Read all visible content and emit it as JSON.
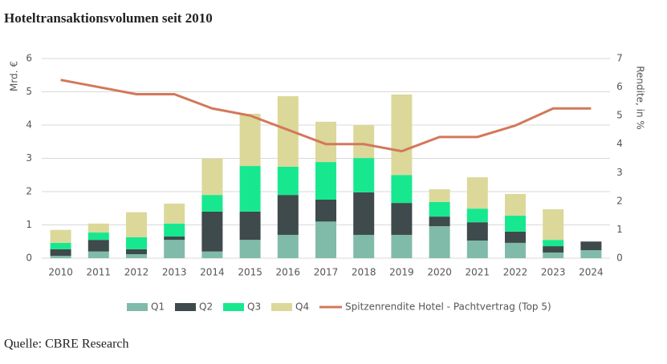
{
  "chart_data": {
    "type": "stacked-bar-line",
    "title": "Hoteltransaktionsvolumen seit 2010",
    "source": "Quelle: CBRE Research",
    "ylabel": "Mrd. €",
    "y2label": "Rendite, in %",
    "categories": [
      "2010",
      "2011",
      "2012",
      "2013",
      "2014",
      "2015",
      "2016",
      "2017",
      "2018",
      "2019",
      "2020",
      "2021",
      "2022",
      "2023",
      "2024"
    ],
    "ylim": [
      0,
      6
    ],
    "yticks": [
      0,
      1,
      2,
      3,
      4,
      5,
      6
    ],
    "y2lim": [
      0,
      7
    ],
    "y2ticks": [
      0,
      1,
      2,
      3,
      4,
      5,
      6,
      7
    ],
    "grid": true,
    "legend": "bottom",
    "series": [
      {
        "name": "Q1",
        "color": "#80bba9",
        "values": [
          0.07,
          0.2,
          0.12,
          0.55,
          0.2,
          0.55,
          0.7,
          1.1,
          0.7,
          0.7,
          0.96,
          0.53,
          0.46,
          0.17,
          0.24
        ]
      },
      {
        "name": "Q2",
        "color": "#3e4a4b",
        "values": [
          0.2,
          0.35,
          0.15,
          0.1,
          1.2,
          0.85,
          1.2,
          0.66,
          1.28,
          0.96,
          0.29,
          0.55,
          0.34,
          0.19,
          0.26
        ]
      },
      {
        "name": "Q3",
        "color": "#17e88f",
        "values": [
          0.19,
          0.22,
          0.36,
          0.39,
          0.5,
          1.37,
          0.85,
          1.13,
          1.03,
          0.84,
          0.44,
          0.41,
          0.48,
          0.19,
          null
        ]
      },
      {
        "name": "Q4",
        "color": "#dbd89a",
        "values": [
          0.39,
          0.27,
          0.75,
          0.6,
          1.09,
          1.57,
          2.12,
          1.21,
          0.99,
          2.42,
          0.38,
          0.94,
          0.65,
          0.92,
          null
        ]
      },
      {
        "name": "Spitzenrendite Hotel - Pachtvertrag (Top 5)",
        "color": "#d3785a",
        "axis": "y2",
        "type": "line",
        "values": [
          6.25,
          6.0,
          5.75,
          5.75,
          5.25,
          5.0,
          4.5,
          4.0,
          4.0,
          3.75,
          4.25,
          4.25,
          4.65,
          5.25,
          5.25
        ]
      }
    ]
  }
}
